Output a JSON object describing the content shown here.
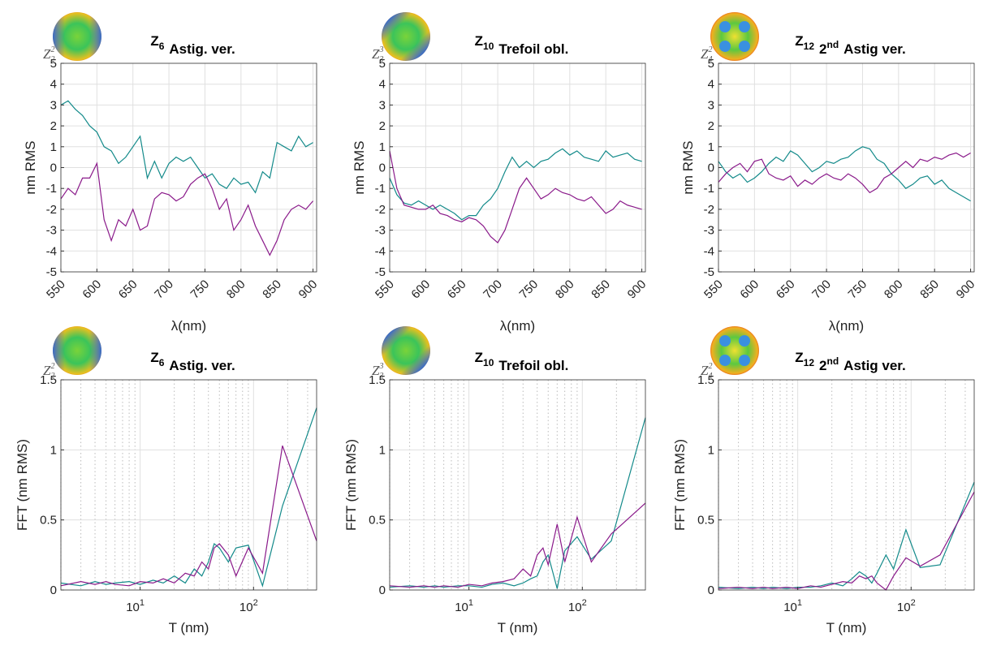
{
  "chart_data": [
    {
      "type": "line",
      "title": [
        {
          "text": "Z"
        },
        {
          "text": "6",
          "style": "sub"
        },
        {
          "text": "Astig. ver."
        }
      ],
      "icon_label": {
        "base": "Z",
        "sub": "2",
        "sup": "2"
      },
      "xlabel": "λ(nm)",
      "ylabel": "nm RMS",
      "xlim": [
        550,
        905
      ],
      "ylim": [
        -5,
        5
      ],
      "xticks": [
        550,
        600,
        650,
        700,
        750,
        800,
        850,
        900
      ],
      "yticks": [
        -5,
        -4,
        -3,
        -2,
        -1,
        0,
        1,
        2,
        3,
        4,
        5
      ],
      "grid": true,
      "x": [
        550,
        560,
        570,
        580,
        590,
        600,
        610,
        620,
        630,
        640,
        650,
        660,
        670,
        680,
        690,
        700,
        710,
        720,
        730,
        740,
        750,
        760,
        770,
        780,
        790,
        800,
        810,
        820,
        830,
        840,
        850,
        860,
        870,
        880,
        890,
        900
      ],
      "series": [
        {
          "color": "#138a8a",
          "values": [
            3.0,
            3.2,
            2.8,
            2.5,
            2.0,
            1.7,
            1.0,
            0.8,
            0.2,
            0.5,
            1.0,
            1.5,
            -0.5,
            0.3,
            -0.5,
            0.2,
            0.5,
            0.3,
            0.5,
            0.0,
            -0.5,
            -0.3,
            -0.8,
            -1.0,
            -0.5,
            -0.8,
            -0.7,
            -1.2,
            -0.2,
            -0.5,
            1.2,
            1.0,
            0.8,
            1.5,
            1.0,
            1.2
          ]
        },
        {
          "color": "#8a1a8a",
          "values": [
            -1.5,
            -1.0,
            -1.3,
            -0.5,
            -0.5,
            0.2,
            -2.5,
            -3.5,
            -2.5,
            -2.8,
            -2.0,
            -3.0,
            -2.8,
            -1.5,
            -1.2,
            -1.3,
            -1.6,
            -1.4,
            -0.8,
            -0.5,
            -0.3,
            -1.0,
            -2.0,
            -1.5,
            -3.0,
            -2.5,
            -1.8,
            -2.8,
            -3.5,
            -4.2,
            -3.5,
            -2.5,
            -2.0,
            -1.8,
            -2.0,
            -1.6
          ]
        }
      ]
    },
    {
      "type": "line",
      "title": [
        {
          "text": "Z"
        },
        {
          "text": "10",
          "style": "sub"
        },
        {
          "text": "Trefoil obl."
        }
      ],
      "icon_label": {
        "base": "Z",
        "sub": "3",
        "sup": "3"
      },
      "xlabel": "λ(nm)",
      "ylabel": "nm RMS",
      "xlim": [
        550,
        905
      ],
      "ylim": [
        -5,
        5
      ],
      "xticks": [
        550,
        600,
        650,
        700,
        750,
        800,
        850,
        900
      ],
      "yticks": [
        -5,
        -4,
        -3,
        -2,
        -1,
        0,
        1,
        2,
        3,
        4,
        5
      ],
      "grid": true,
      "x": [
        550,
        560,
        570,
        580,
        590,
        600,
        610,
        620,
        630,
        640,
        650,
        660,
        670,
        680,
        690,
        700,
        710,
        720,
        730,
        740,
        750,
        760,
        770,
        780,
        790,
        800,
        810,
        820,
        830,
        840,
        850,
        860,
        870,
        880,
        890,
        900
      ],
      "series": [
        {
          "color": "#138a8a",
          "values": [
            -0.5,
            -1.3,
            -1.7,
            -1.8,
            -1.6,
            -1.8,
            -2.0,
            -1.8,
            -2.0,
            -2.2,
            -2.5,
            -2.3,
            -2.3,
            -1.8,
            -1.5,
            -1.0,
            -0.2,
            0.5,
            0.0,
            0.3,
            0.0,
            0.3,
            0.4,
            0.7,
            0.9,
            0.6,
            0.8,
            0.5,
            0.4,
            0.3,
            0.8,
            0.5,
            0.6,
            0.7,
            0.4,
            0.3
          ]
        },
        {
          "color": "#8a1a8a",
          "values": [
            0.8,
            -1.0,
            -1.8,
            -1.9,
            -2.0,
            -2.0,
            -1.8,
            -2.2,
            -2.3,
            -2.5,
            -2.6,
            -2.4,
            -2.5,
            -2.8,
            -3.3,
            -3.6,
            -3.0,
            -2.0,
            -1.0,
            -0.5,
            -1.0,
            -1.5,
            -1.3,
            -1.0,
            -1.2,
            -1.3,
            -1.5,
            -1.6,
            -1.4,
            -1.8,
            -2.2,
            -2.0,
            -1.6,
            -1.8,
            -1.9,
            -2.0
          ]
        }
      ]
    },
    {
      "type": "line",
      "title": [
        {
          "text": "Z"
        },
        {
          "text": "12",
          "style": "sub"
        },
        {
          "text": "2"
        },
        {
          "text": "nd",
          "style": "sup"
        },
        {
          "text": "Astig ver."
        }
      ],
      "icon_label": {
        "base": "Z",
        "sub": "4",
        "sup": "2"
      },
      "xlabel": "λ(nm)",
      "ylabel": "nm RMS",
      "xlim": [
        550,
        905
      ],
      "ylim": [
        -5,
        5
      ],
      "xticks": [
        550,
        600,
        650,
        700,
        750,
        800,
        850,
        900
      ],
      "yticks": [
        -5,
        -4,
        -3,
        -2,
        -1,
        0,
        1,
        2,
        3,
        4,
        5
      ],
      "grid": true,
      "x": [
        550,
        560,
        570,
        580,
        590,
        600,
        610,
        620,
        630,
        640,
        650,
        660,
        670,
        680,
        690,
        700,
        710,
        720,
        730,
        740,
        750,
        760,
        770,
        780,
        790,
        800,
        810,
        820,
        830,
        840,
        850,
        860,
        870,
        880,
        890,
        900
      ],
      "series": [
        {
          "color": "#138a8a",
          "values": [
            0.3,
            -0.2,
            -0.5,
            -0.3,
            -0.7,
            -0.5,
            -0.2,
            0.2,
            0.5,
            0.3,
            0.8,
            0.6,
            0.2,
            -0.2,
            0.0,
            0.3,
            0.2,
            0.4,
            0.5,
            0.8,
            1.0,
            0.9,
            0.4,
            0.2,
            -0.3,
            -0.6,
            -1.0,
            -0.8,
            -0.5,
            -0.4,
            -0.8,
            -0.6,
            -1.0,
            -1.2,
            -1.4,
            -1.6
          ]
        },
        {
          "color": "#8a1a8a",
          "values": [
            -0.7,
            -0.3,
            0.0,
            0.2,
            -0.2,
            0.3,
            0.4,
            -0.3,
            -0.5,
            -0.6,
            -0.4,
            -0.9,
            -0.6,
            -0.8,
            -0.5,
            -0.3,
            -0.5,
            -0.6,
            -0.3,
            -0.5,
            -0.8,
            -1.2,
            -1.0,
            -0.5,
            -0.3,
            0.0,
            0.3,
            0.0,
            0.4,
            0.3,
            0.5,
            0.4,
            0.6,
            0.7,
            0.5,
            0.7
          ]
        }
      ]
    },
    {
      "type": "line",
      "title": [
        {
          "text": "Z"
        },
        {
          "text": "6",
          "style": "sub"
        },
        {
          "text": "Astig. ver."
        }
      ],
      "icon_label": {
        "base": "Z",
        "sub": "2",
        "sup": "2"
      },
      "xlabel": "T (nm)",
      "ylabel": "FFT (nm RMS)",
      "xscale": "log",
      "xlim": [
        2,
        360
      ],
      "ylim": [
        0,
        1.5
      ],
      "xticks": [
        {
          "value": 10,
          "label": "10",
          "exponent": "1"
        },
        {
          "value": 100,
          "label": "10",
          "exponent": "2"
        }
      ],
      "xminorticks": [
        2,
        3,
        4,
        5,
        6,
        7,
        8,
        9,
        20,
        30,
        40,
        50,
        60,
        70,
        80,
        90,
        200,
        300
      ],
      "yticks": [
        0,
        0.5,
        1,
        1.5
      ],
      "grid": true,
      "x": [
        2,
        3,
        4,
        5,
        6,
        8,
        10,
        13,
        16,
        20,
        25,
        30,
        35,
        40,
        45,
        50,
        60,
        70,
        90,
        120,
        180,
        360
      ],
      "series": [
        {
          "color": "#138a8a",
          "values": [
            0.05,
            0.03,
            0.06,
            0.04,
            0.05,
            0.06,
            0.04,
            0.07,
            0.05,
            0.1,
            0.05,
            0.15,
            0.1,
            0.2,
            0.33,
            0.3,
            0.2,
            0.3,
            0.32,
            0.03,
            0.6,
            1.3
          ]
        },
        {
          "color": "#8a1a8a",
          "values": [
            0.03,
            0.06,
            0.04,
            0.06,
            0.04,
            0.03,
            0.06,
            0.05,
            0.08,
            0.05,
            0.12,
            0.1,
            0.2,
            0.15,
            0.3,
            0.33,
            0.25,
            0.1,
            0.3,
            0.12,
            1.03,
            0.35
          ]
        }
      ]
    },
    {
      "type": "line",
      "title": [
        {
          "text": "Z"
        },
        {
          "text": "10",
          "style": "sub"
        },
        {
          "text": "Trefoil obl."
        }
      ],
      "icon_label": {
        "base": "Z",
        "sub": "3",
        "sup": "3"
      },
      "xlabel": "T (nm)",
      "ylabel": "FFT (nm RMS)",
      "xscale": "log",
      "xlim": [
        2,
        360
      ],
      "ylim": [
        0,
        1.5
      ],
      "xticks": [
        {
          "value": 10,
          "label": "10",
          "exponent": "1"
        },
        {
          "value": 100,
          "label": "10",
          "exponent": "2"
        }
      ],
      "xminorticks": [
        2,
        3,
        4,
        5,
        6,
        7,
        8,
        9,
        20,
        30,
        40,
        50,
        60,
        70,
        80,
        90,
        200,
        300
      ],
      "yticks": [
        0,
        0.5,
        1,
        1.5
      ],
      "grid": true,
      "x": [
        2,
        3,
        4,
        5,
        6,
        8,
        10,
        13,
        16,
        20,
        25,
        30,
        35,
        40,
        45,
        50,
        60,
        70,
        90,
        120,
        180,
        360
      ],
      "series": [
        {
          "color": "#138a8a",
          "values": [
            0.02,
            0.03,
            0.02,
            0.03,
            0.02,
            0.03,
            0.03,
            0.02,
            0.04,
            0.05,
            0.03,
            0.05,
            0.08,
            0.1,
            0.2,
            0.25,
            0.01,
            0.28,
            0.38,
            0.22,
            0.35,
            1.23
          ]
        },
        {
          "color": "#8a1a8a",
          "values": [
            0.03,
            0.02,
            0.03,
            0.02,
            0.03,
            0.02,
            0.04,
            0.03,
            0.05,
            0.06,
            0.08,
            0.15,
            0.1,
            0.25,
            0.3,
            0.18,
            0.47,
            0.2,
            0.52,
            0.2,
            0.4,
            0.62
          ]
        }
      ]
    },
    {
      "type": "line",
      "title": [
        {
          "text": "Z"
        },
        {
          "text": "12",
          "style": "sub"
        },
        {
          "text": "2"
        },
        {
          "text": "nd",
          "style": "sup"
        },
        {
          "text": "Astig ver."
        }
      ],
      "icon_label": {
        "base": "Z",
        "sub": "4",
        "sup": "2"
      },
      "xlabel": "T (nm)",
      "ylabel": "FFT (nm RMS)",
      "xscale": "log",
      "xlim": [
        2,
        360
      ],
      "ylim": [
        0,
        1.5
      ],
      "xticks": [
        {
          "value": 10,
          "label": "10",
          "exponent": "1"
        },
        {
          "value": 100,
          "label": "10",
          "exponent": "2"
        }
      ],
      "xminorticks": [
        2,
        3,
        4,
        5,
        6,
        7,
        8,
        9,
        20,
        30,
        40,
        50,
        60,
        70,
        80,
        90,
        200,
        300
      ],
      "yticks": [
        0,
        0.5,
        1,
        1.5
      ],
      "grid": true,
      "x": [
        2,
        3,
        4,
        5,
        6,
        8,
        10,
        13,
        16,
        20,
        25,
        30,
        35,
        40,
        45,
        50,
        60,
        70,
        90,
        120,
        180,
        360
      ],
      "series": [
        {
          "color": "#138a8a",
          "values": [
            0.02,
            0.01,
            0.02,
            0.01,
            0.02,
            0.01,
            0.02,
            0.02,
            0.03,
            0.05,
            0.03,
            0.08,
            0.13,
            0.1,
            0.05,
            0.12,
            0.25,
            0.15,
            0.43,
            0.16,
            0.18,
            0.77
          ]
        },
        {
          "color": "#8a1a8a",
          "values": [
            0.01,
            0.02,
            0.01,
            0.02,
            0.01,
            0.02,
            0.01,
            0.03,
            0.02,
            0.04,
            0.06,
            0.05,
            0.1,
            0.08,
            0.1,
            0.05,
            0.0,
            0.1,
            0.23,
            0.17,
            0.25,
            0.7
          ]
        }
      ]
    }
  ]
}
